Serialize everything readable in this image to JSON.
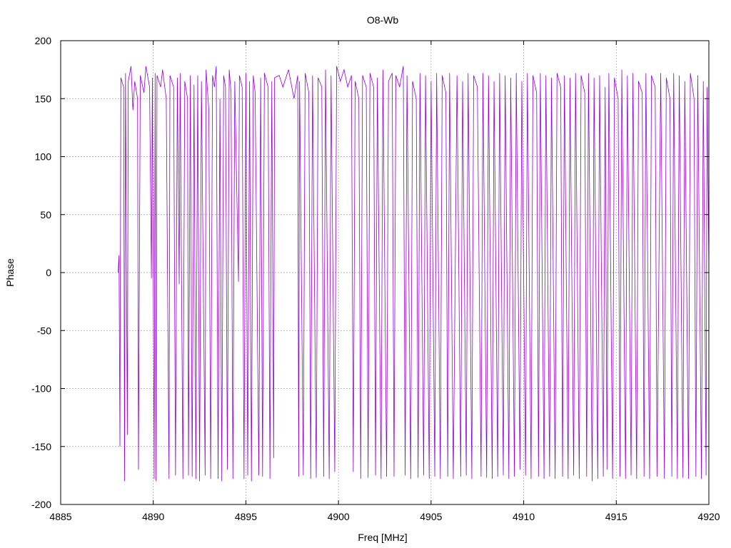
{
  "chart_data": {
    "type": "line",
    "title": "O8-Wb",
    "xlabel": "Freq [MHz]",
    "ylabel": "Phase",
    "xlim": [
      4885,
      4920
    ],
    "ylim": [
      -200,
      200
    ],
    "x_ticks": [
      "4885",
      "4890",
      "4895",
      "4900",
      "4905",
      "4910",
      "4915",
      "4920"
    ],
    "y_ticks": [
      "200",
      "150",
      "100",
      "50",
      "0",
      "-50",
      "-100",
      "-150",
      "-200"
    ],
    "grid": true,
    "legend": "none",
    "color": "#9400d3",
    "series": [
      {
        "values": [
          [
            4888.1,
            0
          ],
          [
            4888.15,
            15
          ],
          [
            4888.2,
            -150
          ],
          [
            4888.25,
            168
          ],
          [
            4888.4,
            160
          ],
          [
            4888.45,
            -180
          ],
          [
            4888.5,
            172
          ],
          [
            4888.6,
            -140
          ],
          [
            4888.65,
            165
          ],
          [
            4888.8,
            178
          ],
          [
            4888.9,
            140
          ],
          [
            4889.0,
            165
          ],
          [
            4889.15,
            150
          ],
          [
            4889.2,
            -170
          ],
          [
            4889.3,
            170
          ],
          [
            4889.5,
            155
          ],
          [
            4889.6,
            178
          ],
          [
            4889.8,
            160
          ],
          [
            4889.9,
            -5
          ],
          [
            4889.95,
            168
          ],
          [
            4890.05,
            -178
          ],
          [
            4890.1,
            172
          ],
          [
            4890.15,
            -180
          ],
          [
            4890.2,
            170
          ],
          [
            4890.4,
            160
          ],
          [
            4890.5,
            175
          ],
          [
            4890.7,
            150
          ],
          [
            4890.85,
            -178
          ],
          [
            4890.9,
            170
          ],
          [
            4891.1,
            160
          ],
          [
            4891.2,
            -175
          ],
          [
            4891.3,
            168
          ],
          [
            4891.4,
            -10
          ],
          [
            4891.45,
            172
          ],
          [
            4891.6,
            -178
          ],
          [
            4891.7,
            165
          ],
          [
            4891.85,
            150
          ],
          [
            4891.9,
            -175
          ],
          [
            4892.0,
            170
          ],
          [
            4892.1,
            -176
          ],
          [
            4892.2,
            162
          ],
          [
            4892.3,
            -178
          ],
          [
            4892.4,
            170
          ],
          [
            4892.5,
            -180
          ],
          [
            4892.6,
            165
          ],
          [
            4892.8,
            -175
          ],
          [
            4892.85,
            175
          ],
          [
            4893.0,
            140
          ],
          [
            4893.1,
            -178
          ],
          [
            4893.2,
            170
          ],
          [
            4893.3,
            160
          ],
          [
            4893.4,
            178
          ],
          [
            4893.5,
            -178
          ],
          [
            4893.6,
            150
          ],
          [
            4893.7,
            -180
          ],
          [
            4893.8,
            170
          ],
          [
            4893.9,
            160
          ],
          [
            4894.0,
            -170
          ],
          [
            4894.1,
            175
          ],
          [
            4894.2,
            155
          ],
          [
            4894.3,
            -178
          ],
          [
            4894.4,
            165
          ],
          [
            4894.6,
            -8
          ],
          [
            4894.65,
            170
          ],
          [
            4894.8,
            160
          ],
          [
            4894.9,
            -178
          ],
          [
            4895.0,
            172
          ],
          [
            4895.1,
            -175
          ],
          [
            4895.2,
            165
          ],
          [
            4895.3,
            -180
          ],
          [
            4895.4,
            170
          ],
          [
            4895.5,
            155
          ],
          [
            4895.7,
            -175
          ],
          [
            4895.8,
            168
          ],
          [
            4895.9,
            -176
          ],
          [
            4896.0,
            172
          ],
          [
            4896.2,
            160
          ],
          [
            4896.3,
            -178
          ],
          [
            4896.4,
            165
          ],
          [
            4896.5,
            -160
          ],
          [
            4896.55,
            168
          ],
          [
            4896.8,
            170
          ],
          [
            4897.0,
            160
          ],
          [
            4897.3,
            175
          ],
          [
            4897.6,
            150
          ],
          [
            4897.8,
            170
          ],
          [
            4897.85,
            -176
          ],
          [
            4897.9,
            165
          ],
          [
            4898.1,
            -175
          ],
          [
            4898.2,
            172
          ],
          [
            4898.4,
            155
          ],
          [
            4898.5,
            -178
          ],
          [
            4898.6,
            170
          ],
          [
            4898.8,
            -177
          ],
          [
            4898.9,
            168
          ],
          [
            4899.1,
            160
          ],
          [
            4899.2,
            -176
          ],
          [
            4899.3,
            175
          ],
          [
            4899.5,
            -178
          ],
          [
            4899.6,
            170
          ],
          [
            4899.8,
            -172
          ],
          [
            4899.9,
            178
          ],
          [
            4900.1,
            165
          ],
          [
            4900.3,
            175
          ],
          [
            4900.5,
            160
          ],
          [
            4900.7,
            170
          ],
          [
            4900.8,
            -172
          ],
          [
            4900.9,
            165
          ],
          [
            4901.1,
            150
          ],
          [
            4901.2,
            -178
          ],
          [
            4901.3,
            170
          ],
          [
            4901.5,
            160
          ],
          [
            4901.6,
            -177
          ],
          [
            4901.7,
            172
          ],
          [
            4901.9,
            160
          ],
          [
            4902.0,
            -175
          ],
          [
            4902.1,
            168
          ],
          [
            4902.3,
            -178
          ],
          [
            4902.4,
            175
          ],
          [
            4902.6,
            -176
          ],
          [
            4902.7,
            165
          ],
          [
            4902.9,
            172
          ],
          [
            4903.0,
            -176
          ],
          [
            4903.1,
            170
          ],
          [
            4903.3,
            160
          ],
          [
            4903.5,
            178
          ],
          [
            4903.6,
            -175
          ],
          [
            4903.7,
            170
          ],
          [
            4903.9,
            -178
          ],
          [
            4904.0,
            165
          ],
          [
            4904.2,
            150
          ],
          [
            4904.3,
            -177
          ],
          [
            4904.4,
            172
          ],
          [
            4904.6,
            -175
          ],
          [
            4904.7,
            170
          ],
          [
            4904.9,
            -178
          ],
          [
            4905.0,
            165
          ],
          [
            4905.2,
            -176
          ],
          [
            4905.3,
            172
          ],
          [
            4905.5,
            -178
          ],
          [
            4905.6,
            170
          ],
          [
            4905.8,
            155
          ],
          [
            4905.9,
            -176
          ],
          [
            4906.0,
            172
          ],
          [
            4906.2,
            -178
          ],
          [
            4906.4,
            170
          ],
          [
            4906.6,
            -176
          ],
          [
            4906.7,
            165
          ],
          [
            4906.9,
            -175
          ],
          [
            4907.0,
            172
          ],
          [
            4907.2,
            -178
          ],
          [
            4907.3,
            170
          ],
          [
            4907.5,
            160
          ],
          [
            4907.7,
            -176
          ],
          [
            4907.8,
            172
          ],
          [
            4908.0,
            -177
          ],
          [
            4908.1,
            170
          ],
          [
            4908.3,
            -178
          ],
          [
            4908.4,
            165
          ],
          [
            4908.6,
            -176
          ],
          [
            4908.7,
            172
          ],
          [
            4908.9,
            -175
          ],
          [
            4909.0,
            170
          ],
          [
            4909.2,
            -178
          ],
          [
            4909.3,
            168
          ],
          [
            4909.5,
            -176
          ],
          [
            4909.6,
            172
          ],
          [
            4909.8,
            -170
          ],
          [
            4909.9,
            165
          ],
          [
            4910.1,
            -175
          ],
          [
            4910.2,
            172
          ],
          [
            4910.4,
            -178
          ],
          [
            4910.5,
            170
          ],
          [
            4910.7,
            155
          ],
          [
            4910.8,
            -176
          ],
          [
            4910.9,
            172
          ],
          [
            4911.1,
            -178
          ],
          [
            4911.2,
            170
          ],
          [
            4911.4,
            -176
          ],
          [
            4911.5,
            168
          ],
          [
            4911.7,
            -178
          ],
          [
            4911.8,
            172
          ],
          [
            4912.0,
            160
          ],
          [
            4912.1,
            -176
          ],
          [
            4912.2,
            170
          ],
          [
            4912.4,
            -178
          ],
          [
            4912.5,
            168
          ],
          [
            4912.7,
            -175
          ],
          [
            4912.8,
            172
          ],
          [
            4913.0,
            -178
          ],
          [
            4913.1,
            170
          ],
          [
            4913.3,
            155
          ],
          [
            4913.4,
            -176
          ],
          [
            4913.5,
            172
          ],
          [
            4913.7,
            -180
          ],
          [
            4913.8,
            168
          ],
          [
            4914.0,
            -178
          ],
          [
            4914.1,
            170
          ],
          [
            4914.3,
            -176
          ],
          [
            4914.4,
            160
          ],
          [
            4914.5,
            -170
          ],
          [
            4914.6,
            172
          ],
          [
            4914.8,
            -178
          ],
          [
            4914.9,
            168
          ],
          [
            4915.1,
            150
          ],
          [
            4915.2,
            -176
          ],
          [
            4915.3,
            175
          ],
          [
            4915.5,
            -178
          ],
          [
            4915.6,
            170
          ],
          [
            4915.8,
            -175
          ],
          [
            4915.9,
            172
          ],
          [
            4916.1,
            -178
          ],
          [
            4916.2,
            165
          ],
          [
            4916.4,
            155
          ],
          [
            4916.5,
            -176
          ],
          [
            4916.6,
            172
          ],
          [
            4916.8,
            -178
          ],
          [
            4916.9,
            170
          ],
          [
            4917.1,
            160
          ],
          [
            4917.2,
            -176
          ],
          [
            4917.4,
            172
          ],
          [
            4917.6,
            -178
          ],
          [
            4917.7,
            168
          ],
          [
            4917.9,
            150
          ],
          [
            4918.0,
            -176
          ],
          [
            4918.1,
            172
          ],
          [
            4918.3,
            -178
          ],
          [
            4918.4,
            170
          ],
          [
            4918.6,
            -177
          ],
          [
            4918.7,
            165
          ],
          [
            4918.9,
            -178
          ],
          [
            4919.0,
            172
          ],
          [
            4919.2,
            150
          ],
          [
            4919.3,
            -176
          ],
          [
            4919.4,
            170
          ],
          [
            4919.6,
            -178
          ],
          [
            4919.7,
            165
          ],
          [
            4919.85,
            -175
          ],
          [
            4919.9,
            160
          ],
          [
            4920.0,
            5
          ]
        ]
      }
    ]
  }
}
